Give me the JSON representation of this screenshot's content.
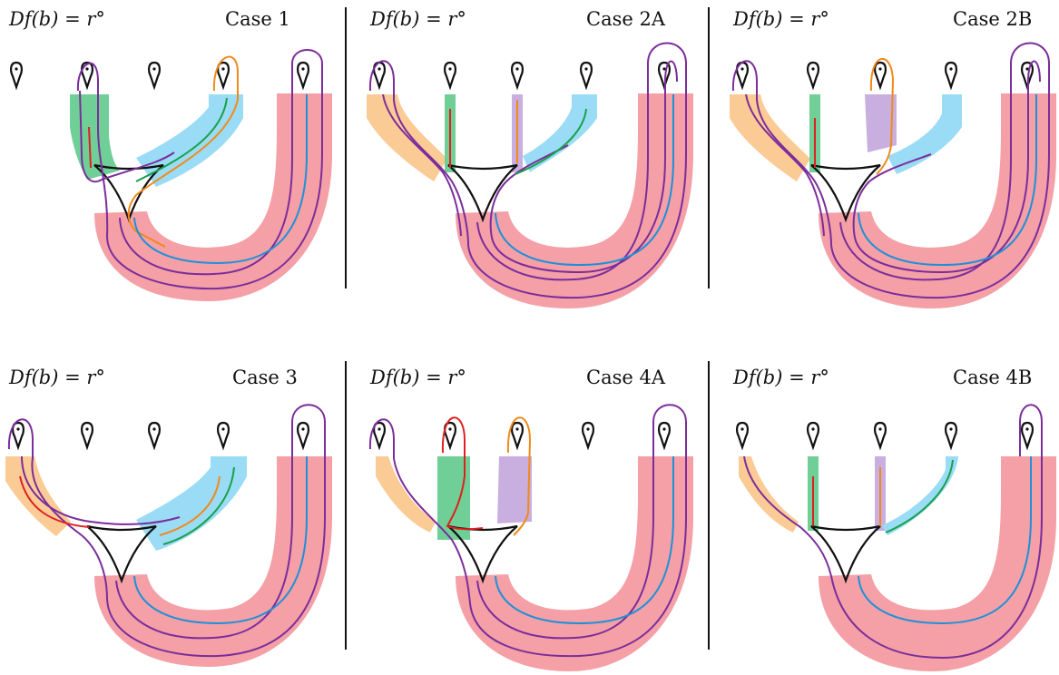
{
  "panels": [
    {
      "id": "case1",
      "label_math": "Df(b) = r°",
      "case": "Case 1",
      "bands": [
        "green",
        "blue",
        "red"
      ],
      "strands": [
        "purple",
        "purple",
        "orange",
        "green",
        "blue",
        "red"
      ]
    },
    {
      "id": "case2a",
      "label_math": "Df(b) = r°",
      "case": "Case 2A",
      "bands": [
        "orange",
        "green",
        "lavender",
        "blue",
        "red"
      ],
      "strands": [
        "purple",
        "red",
        "green",
        "blue",
        "purple"
      ]
    },
    {
      "id": "case2b",
      "label_math": "Df(b) = r°",
      "case": "Case 2B",
      "bands": [
        "orange",
        "green",
        "lavender",
        "blue",
        "red"
      ],
      "strands": [
        "purple",
        "red",
        "orange",
        "blue",
        "purple"
      ]
    },
    {
      "id": "case3",
      "label_math": "Df(b) = r°",
      "case": "Case 3",
      "bands": [
        "orange",
        "blue",
        "red"
      ],
      "strands": [
        "purple",
        "red",
        "orange",
        "green",
        "blue"
      ]
    },
    {
      "id": "case4a",
      "label_math": "Df(b) = r°",
      "case": "Case 4A",
      "bands": [
        "orange",
        "green",
        "lavender",
        "red"
      ],
      "strands": [
        "purple",
        "red",
        "orange",
        "blue"
      ]
    },
    {
      "id": "case4b",
      "label_math": "Df(b) = r°",
      "case": "Case 4B",
      "bands": [
        "orange",
        "green",
        "lavender",
        "blue",
        "red"
      ],
      "strands": [
        "purple",
        "red",
        "orange",
        "green",
        "blue"
      ]
    }
  ],
  "colors": {
    "band_red": "#f4a0a6",
    "band_green": "#6fcf97",
    "band_blue": "#9adcf5",
    "band_orange": "#fbcb96",
    "band_lavender": "#c9aee0",
    "strand_purple": "#7b2d9b",
    "strand_blue": "#1e90d8",
    "strand_orange": "#f08a1a",
    "strand_green": "#1aa04a",
    "strand_red": "#e0201f",
    "ink": "#111111"
  }
}
